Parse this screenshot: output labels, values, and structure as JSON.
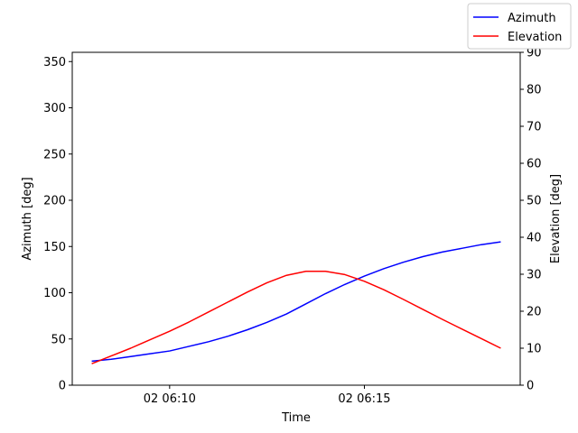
{
  "chart_data": {
    "type": "line",
    "xlabel": "Time",
    "ylabel_left": "Azimuth [deg]",
    "ylabel_right": "Elevation [deg]",
    "x_range_minutes": [
      6.08,
      6.35
    ],
    "x_ticks": [
      {
        "value": 10,
        "label": "02 06:10"
      },
      {
        "value": 15,
        "label": "02 06:15"
      }
    ],
    "x_domain": [
      5.5,
      17.0
    ],
    "ylim_left": [
      0,
      360
    ],
    "yticks_left": [
      0,
      50,
      100,
      150,
      200,
      250,
      300,
      350
    ],
    "ylim_right": [
      0,
      90
    ],
    "yticks_right": [
      0,
      10,
      20,
      30,
      40,
      50,
      60,
      70,
      80,
      90
    ],
    "legend_position": "top-right",
    "grid": false,
    "series": [
      {
        "name": "Azimuth",
        "axis": "left",
        "color": "#0000ff",
        "x": [
          8.0,
          8.5,
          9.0,
          9.5,
          10.0,
          10.5,
          11.0,
          11.5,
          12.0,
          12.5,
          13.0,
          13.5,
          14.0,
          14.5,
          15.0,
          15.5,
          16.0,
          16.5,
          17.0,
          17.5,
          18.0,
          18.5
        ],
        "values": [
          26,
          28,
          31,
          34,
          37,
          42,
          47,
          53,
          60,
          68,
          77,
          88,
          99,
          109,
          118,
          126,
          133,
          139,
          144,
          148,
          152,
          155
        ]
      },
      {
        "name": "Elevation",
        "axis": "right",
        "color": "#ff0000",
        "x": [
          8.0,
          8.5,
          9.0,
          9.5,
          10.0,
          10.5,
          11.0,
          11.5,
          12.0,
          12.5,
          13.0,
          13.5,
          14.0,
          14.5,
          15.0,
          15.5,
          16.0,
          16.5,
          17.0,
          17.5,
          18.0,
          18.5
        ],
        "values": [
          5.8,
          7.9,
          10.0,
          12.3,
          14.6,
          17.1,
          19.8,
          22.5,
          25.2,
          27.7,
          29.7,
          30.8,
          30.8,
          29.9,
          28.1,
          25.8,
          23.2,
          20.5,
          17.8,
          15.2,
          12.6,
          10.0
        ]
      }
    ]
  }
}
